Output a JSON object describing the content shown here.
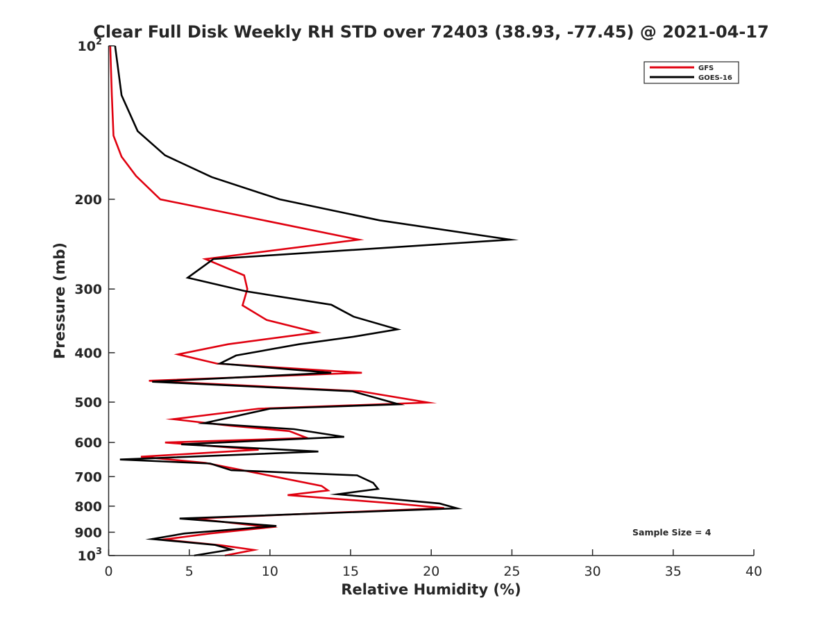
{
  "chart_data": {
    "type": "line",
    "title": "Clear Full Disk Weekly RH STD over 72403 (38.93, -77.45) @ 2021-04-17",
    "xlabel": "Relative Humidity (%)",
    "ylabel": "Pressure (mb)",
    "xlim": [
      0,
      40
    ],
    "ylim": [
      100,
      1000
    ],
    "y_scale": "log",
    "y_reversed": true,
    "grid": false,
    "legend_position": "top-right",
    "annotation": "Sample Size = 4",
    "x_ticks": [
      "0",
      "5",
      "10",
      "15",
      "20",
      "25",
      "30",
      "35",
      "40"
    ],
    "y_ticks": [
      {
        "value": 100,
        "base": "10",
        "exp": "2"
      },
      {
        "value": 200,
        "label": "200"
      },
      {
        "value": 300,
        "label": "300"
      },
      {
        "value": 400,
        "label": "400"
      },
      {
        "value": 500,
        "label": "500"
      },
      {
        "value": 600,
        "label": "600"
      },
      {
        "value": 700,
        "label": "700"
      },
      {
        "value": 800,
        "label": "800"
      },
      {
        "value": 900,
        "label": "900"
      },
      {
        "value": 1000,
        "base": "10",
        "exp": "3"
      }
    ],
    "series": [
      {
        "name": "GFS",
        "color": "#e0000f",
        "points": [
          [
            0.1,
            100
          ],
          [
            0.2,
            125
          ],
          [
            0.3,
            150
          ],
          [
            0.8,
            165
          ],
          [
            1.7,
            180
          ],
          [
            3.2,
            200
          ],
          [
            15.5,
            240
          ],
          [
            6.0,
            262
          ],
          [
            8.4,
            282
          ],
          [
            8.6,
            300
          ],
          [
            8.3,
            323
          ],
          [
            9.8,
            345
          ],
          [
            12.9,
            365
          ],
          [
            7.4,
            385
          ],
          [
            4.3,
            403
          ],
          [
            6.7,
            420
          ],
          [
            15.7,
            438
          ],
          [
            2.5,
            454
          ],
          [
            15.6,
            476
          ],
          [
            19.8,
            501
          ],
          [
            9.3,
            515
          ],
          [
            4.0,
            540
          ],
          [
            7.5,
            556
          ],
          [
            11.2,
            570
          ],
          [
            12.3,
            588
          ],
          [
            3.5,
            600
          ],
          [
            9.3,
            620
          ],
          [
            2.0,
            640
          ],
          [
            6.0,
            658
          ],
          [
            10.4,
            701
          ],
          [
            13.2,
            730
          ],
          [
            13.6,
            745
          ],
          [
            11.1,
            761
          ],
          [
            17.7,
            790
          ],
          [
            20.8,
            807
          ],
          [
            5.3,
            846
          ],
          [
            10.0,
            880
          ],
          [
            6.3,
            905
          ],
          [
            3.4,
            930
          ],
          [
            7.0,
            955
          ],
          [
            9.0,
            975
          ],
          [
            7.2,
            1000
          ]
        ]
      },
      {
        "name": "GOES-16",
        "color": "#000000",
        "points": [
          [
            0.4,
            100
          ],
          [
            0.8,
            125
          ],
          [
            1.8,
            147
          ],
          [
            3.5,
            164
          ],
          [
            6.4,
            181
          ],
          [
            10.6,
            200
          ],
          [
            16.8,
            220
          ],
          [
            24.9,
            240
          ],
          [
            6.5,
            262
          ],
          [
            4.9,
            285
          ],
          [
            8.5,
            303
          ],
          [
            13.8,
            322
          ],
          [
            15.2,
            340
          ],
          [
            17.9,
            360
          ],
          [
            15.2,
            372
          ],
          [
            11.8,
            385
          ],
          [
            7.9,
            405
          ],
          [
            6.9,
            420
          ],
          [
            13.8,
            438
          ],
          [
            2.7,
            456
          ],
          [
            15.1,
            476
          ],
          [
            18.0,
            505
          ],
          [
            10.0,
            515
          ],
          [
            5.9,
            550
          ],
          [
            11.5,
            565
          ],
          [
            14.6,
            585
          ],
          [
            4.5,
            605
          ],
          [
            13.0,
            625
          ],
          [
            0.7,
            648
          ],
          [
            6.3,
            660
          ],
          [
            7.6,
            680
          ],
          [
            15.4,
            696
          ],
          [
            16.4,
            720
          ],
          [
            16.7,
            740
          ],
          [
            14.2,
            758
          ],
          [
            20.5,
            790
          ],
          [
            21.6,
            808
          ],
          [
            4.4,
            846
          ],
          [
            10.4,
            875
          ],
          [
            4.7,
            905
          ],
          [
            2.7,
            928
          ],
          [
            6.6,
            953
          ],
          [
            7.6,
            973
          ],
          [
            5.3,
            1000
          ]
        ]
      }
    ]
  }
}
